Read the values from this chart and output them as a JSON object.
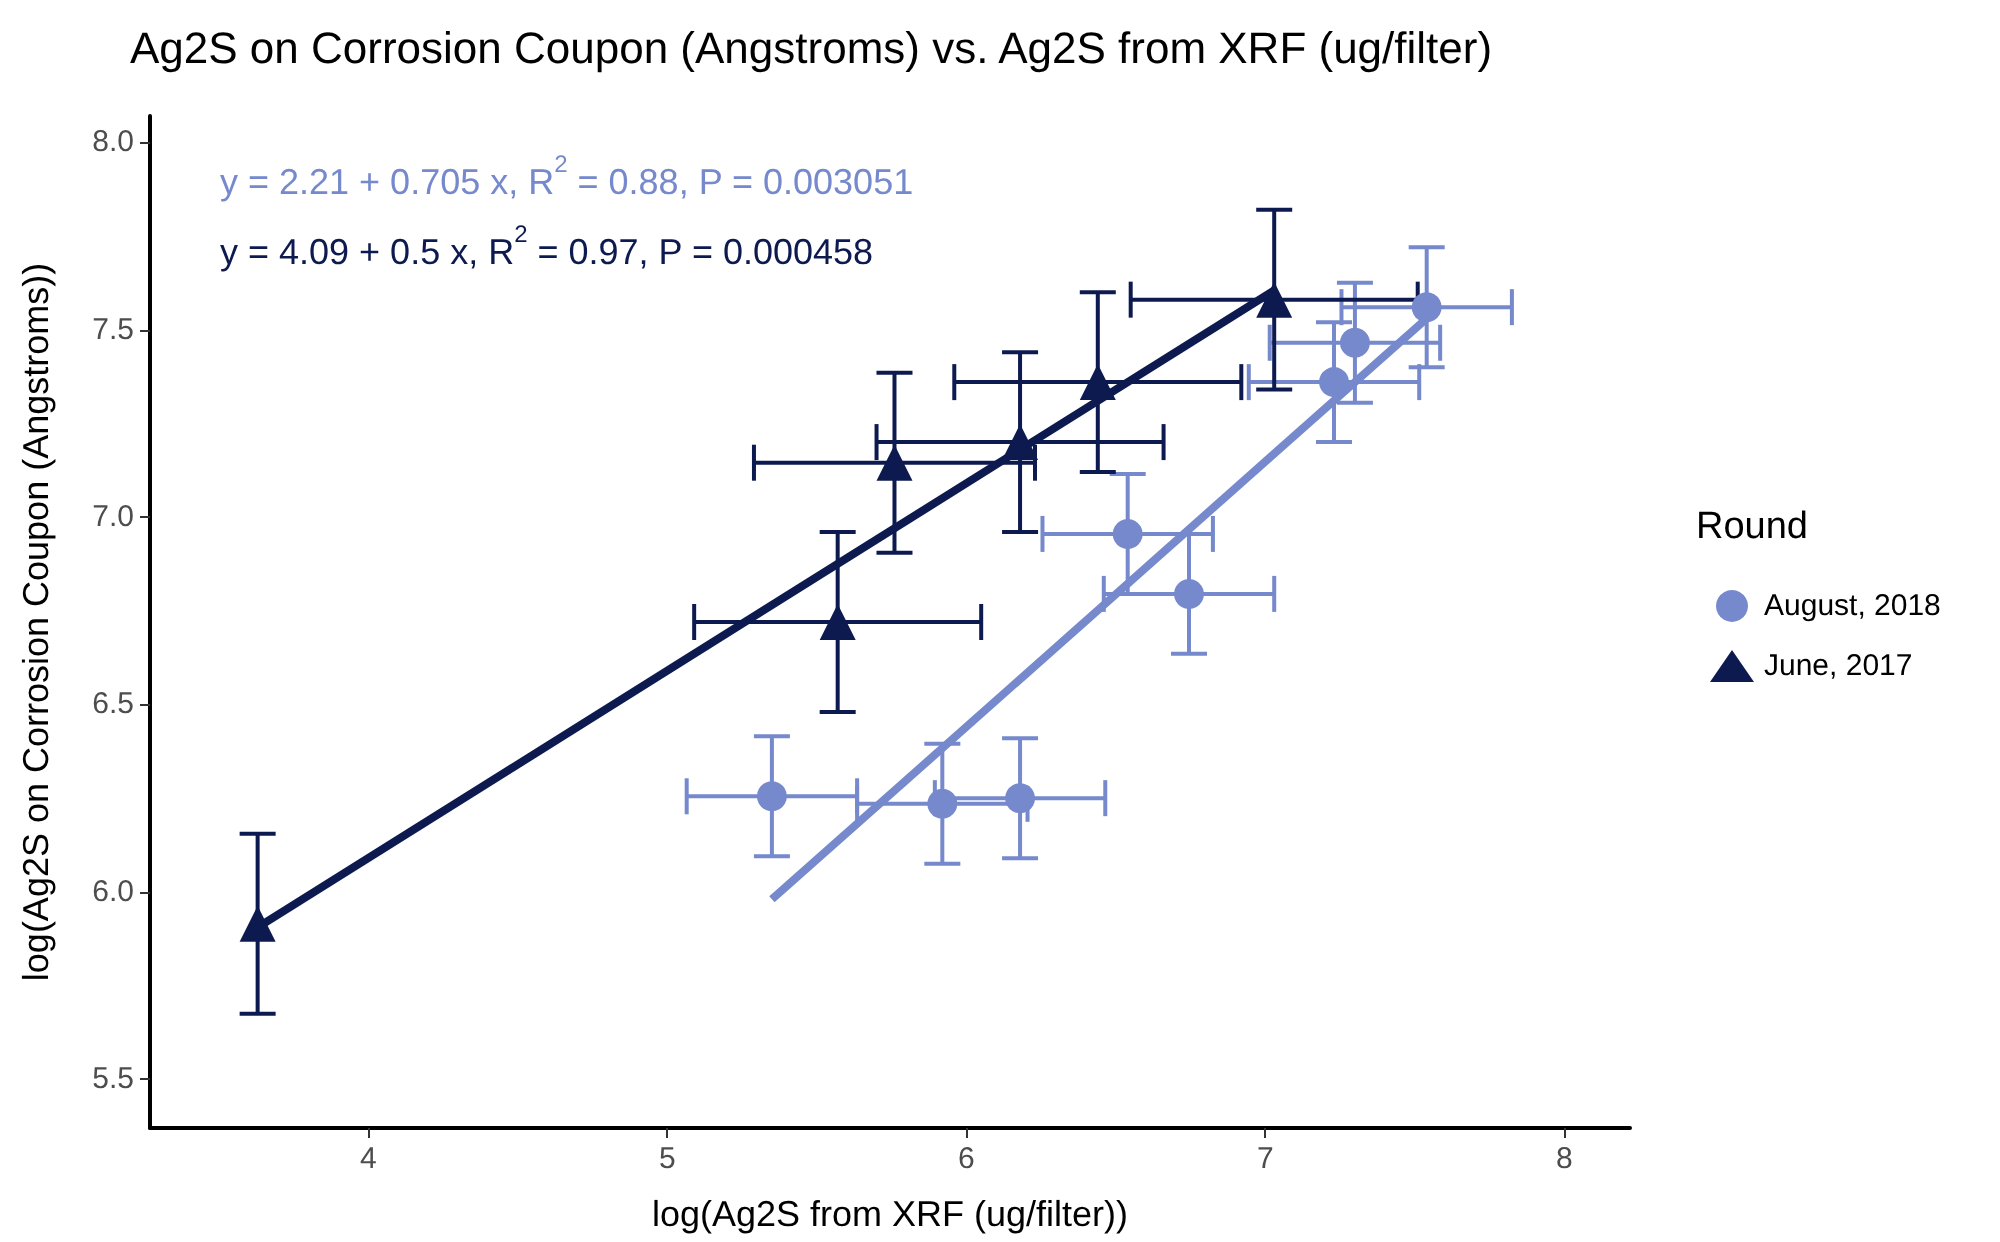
{
  "chart_data": {
    "type": "scatter",
    "title": "Ag2S on Corrosion Coupon (Angstroms) vs. Ag2S from XRF (ug/filter)",
    "xlabel": "log(Ag2S from XRF (ug/filter))",
    "ylabel": "log(Ag2S on Corrosion Coupon (Angstroms))",
    "legend_title": "Round",
    "legend": "right",
    "grid": false,
    "xlim": [
      3.27,
      8.22
    ],
    "xticks": [
      4,
      5,
      6,
      7,
      8
    ],
    "ylim": [
      5.37,
      8.07
    ],
    "yticks": [
      {
        "value": 5.5,
        "label": "5.5"
      },
      {
        "value": 6,
        "label": "6.0"
      },
      {
        "value": 6.5,
        "label": "6.5"
      },
      {
        "value": 7,
        "label": "7.0"
      },
      {
        "value": 7.5,
        "label": "7.5"
      },
      {
        "value": 8,
        "label": "8.0"
      }
    ],
    "annotations": [
      "y = 2.21 + 0.705 x, R$^{2}$ = 0.88, P = 0.003051",
      "y = 4.09 + 0.5 x, R$^{2}$ = 0.97, P = 0.000458"
    ],
    "series": [
      {
        "name": "August, 2018",
        "marker": "circle",
        "color": "#7589cc",
        "x": [
          5.35,
          5.92,
          6.18,
          6.54,
          6.745,
          7.23,
          7.3,
          7.54
        ],
        "values": [
          6.255,
          6.235,
          6.25,
          6.955,
          6.795,
          7.36,
          7.465,
          7.56
        ],
        "errors": [
          0.16,
          0.16,
          0.16,
          0.16,
          0.16,
          0.16,
          0.16,
          0.16
        ],
        "xerrors": [
          0.285,
          0.285,
          0.285,
          0.285,
          0.285,
          0.285,
          0.285,
          0.285
        ]
      },
      {
        "name": "June, 2017",
        "marker": "triangle",
        "color": "#0d1a4f",
        "x": [
          3.63,
          5.57,
          5.76,
          6.18,
          6.44,
          7.03
        ],
        "values": [
          5.915,
          6.72,
          7.145,
          7.2,
          7.36,
          7.58
        ],
        "errors": [
          0.24,
          0.24,
          0.24,
          0.24,
          0.24,
          0.24
        ],
        "xerrors": [
          null,
          0.48,
          0.47,
          0.48,
          0.48,
          0.48
        ]
      },
      {
        "type": "line",
        "marker": "none",
        "color": "#7589cc",
        "x": [
          5.35,
          7.54
        ],
        "values": [
          5.98,
          7.53
        ]
      },
      {
        "type": "line",
        "marker": "none",
        "color": "#0d1a4f",
        "x": [
          3.63,
          7.03
        ],
        "values": [
          5.905,
          7.605
        ]
      }
    ]
  }
}
